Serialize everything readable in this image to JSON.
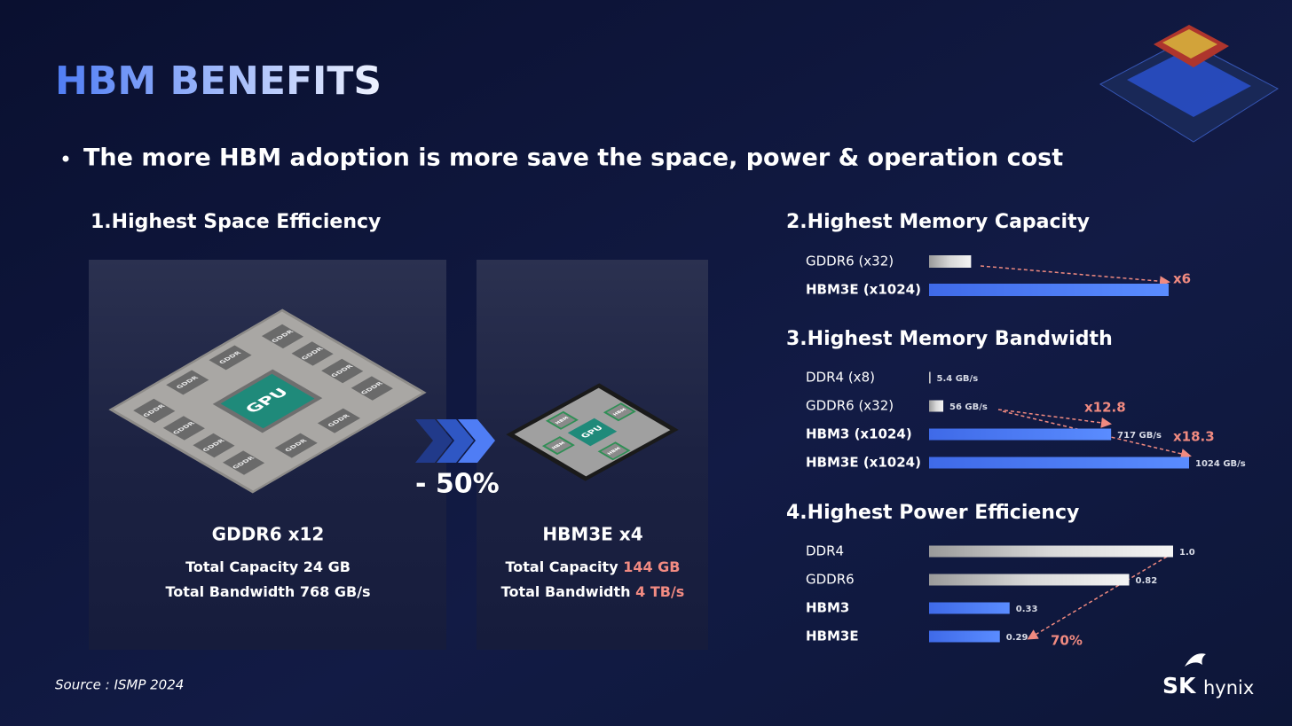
{
  "title": "HBM BENEFITS",
  "bullet": "The more HBM adoption is more save the space, power & operation cost",
  "space": {
    "heading": "1.Highest Space Efficiency",
    "gpu_label": "GPU",
    "gddr_chip_label": "GDDR",
    "hbm_chip_label": "HBM",
    "reduction": "- 50%",
    "panels": [
      {
        "name": "GDDR6 x12",
        "capacity_label": "Total Capacity",
        "capacity": "24 GB",
        "bandwidth_label": "Total Bandwidth",
        "bandwidth": "768 GB/s",
        "highlight": false
      },
      {
        "name": "HBM3E x4",
        "capacity_label": "Total Capacity",
        "capacity": "144 GB",
        "bandwidth_label": "Total Bandwidth",
        "bandwidth": "4 TB/s",
        "highlight": true
      }
    ]
  },
  "capacity": {
    "heading": "2.Highest Memory Capacity",
    "categories": [
      "GDDR6 (x32)",
      "HBM3E (x1024)"
    ],
    "emphasis": [
      false,
      true
    ],
    "values": [
      1,
      5.7
    ],
    "xlim": [
      0,
      5.7
    ],
    "annotations": [
      "x6"
    ]
  },
  "bandwidth": {
    "heading": "3.Highest Memory Bandwidth",
    "categories": [
      "DDR4 (x8)",
      "GDDR6 (x32)",
      "HBM3 (x1024)",
      "HBM3E (x1024)"
    ],
    "emphasis": [
      false,
      false,
      true,
      true
    ],
    "values": [
      5.4,
      56,
      717,
      1024
    ],
    "value_labels": [
      "5.4 GB/s",
      "56 GB/s",
      "717 GB/s",
      "1024 GB/s"
    ],
    "xlim": [
      0,
      1024
    ],
    "annotations": [
      "x12.8",
      "x18.3"
    ]
  },
  "power": {
    "heading": "4.Highest Power Efficiency",
    "categories": [
      "DDR4",
      "GDDR6",
      "HBM3",
      "HBM3E"
    ],
    "emphasis": [
      false,
      false,
      true,
      true
    ],
    "values": [
      1,
      0.82,
      0.33,
      0.29
    ],
    "value_labels": [
      "1.0",
      "0.82",
      "0.33",
      "0.29"
    ],
    "xlim": [
      0,
      1
    ],
    "annotations": [
      "70%"
    ]
  },
  "source": "Source : ISMP 2024",
  "logo": {
    "sk": "SK",
    "hynix": "hynix"
  }
}
